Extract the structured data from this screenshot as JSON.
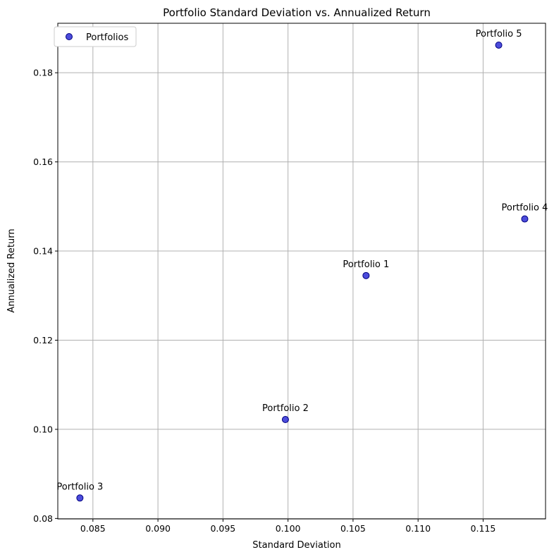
{
  "chart_data": {
    "type": "scatter",
    "title": "Portfolio Standard Deviation vs. Annualized Return",
    "xlabel": "Standard Deviation",
    "ylabel": "Annualized Return",
    "xlim": [
      0.0823,
      0.1198
    ],
    "ylim": [
      0.0799,
      0.1911
    ],
    "xticks": [
      0.085,
      0.09,
      0.095,
      0.1,
      0.105,
      0.11,
      0.115
    ],
    "xtick_labels": [
      "0.085",
      "0.090",
      "0.095",
      "0.100",
      "0.105",
      "0.110",
      "0.115"
    ],
    "yticks": [
      0.08,
      0.1,
      0.12,
      0.14,
      0.16,
      0.18
    ],
    "ytick_labels": [
      "0.08",
      "0.10",
      "0.12",
      "0.14",
      "0.16",
      "0.18"
    ],
    "grid": true,
    "legend_position": "upper-left",
    "series": [
      {
        "name": "Portfolios",
        "color": "#0000cc",
        "edge_color": "#000080",
        "points": [
          {
            "label": "Portfolio 1",
            "x": 0.106,
            "y": 0.1345
          },
          {
            "label": "Portfolio 2",
            "x": 0.0998,
            "y": 0.1022
          },
          {
            "label": "Portfolio 3",
            "x": 0.084,
            "y": 0.0846
          },
          {
            "label": "Portfolio 4",
            "x": 0.1182,
            "y": 0.1472
          },
          {
            "label": "Portfolio 5",
            "x": 0.1162,
            "y": 0.1862
          }
        ]
      }
    ]
  }
}
